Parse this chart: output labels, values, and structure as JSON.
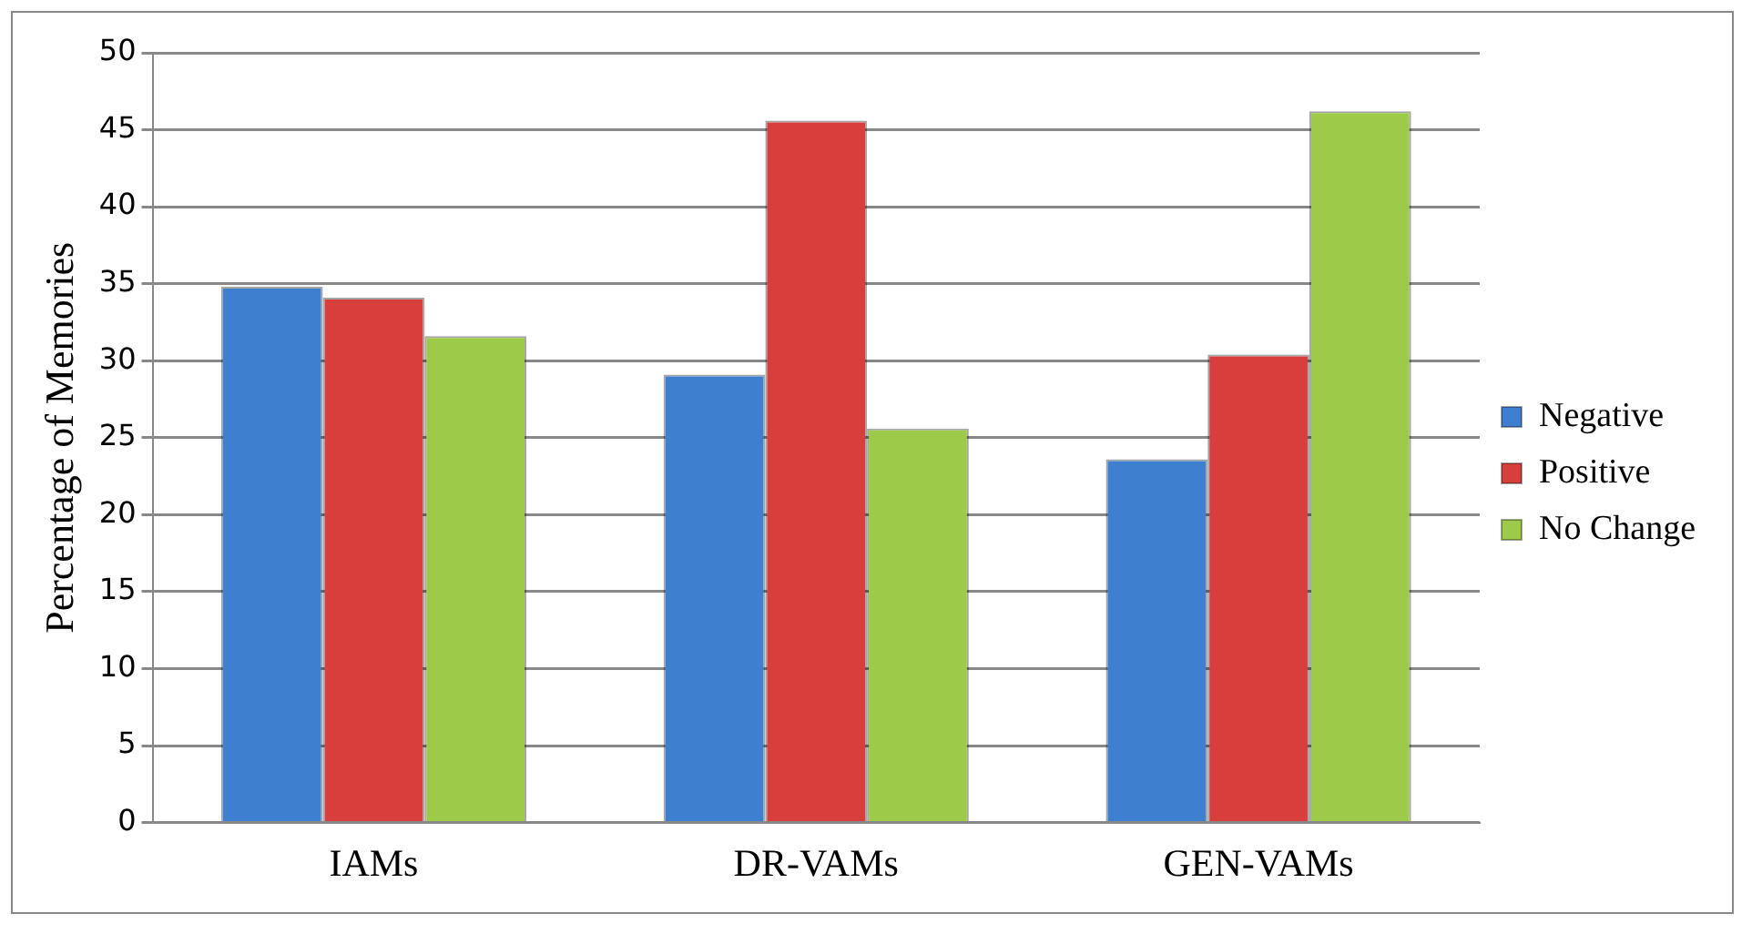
{
  "chart_data": {
    "type": "bar",
    "ylabel": "Percentage of Memories",
    "categories": [
      "IAMs",
      "DR-VAMs",
      "GEN-VAMs"
    ],
    "series": [
      {
        "name": "Negative",
        "color": "#3f7fcf",
        "values": [
          34.8,
          29.1,
          23.6
        ]
      },
      {
        "name": "Positive",
        "color": "#d63f3c",
        "values": [
          34.1,
          45.6,
          30.4
        ]
      },
      {
        "name": "No Change",
        "color": "#9dca48",
        "values": [
          31.6,
          25.6,
          46.2
        ]
      }
    ],
    "ylim": [
      0,
      50
    ],
    "yticks": [
      0,
      5,
      10,
      15,
      20,
      25,
      30,
      35,
      40,
      45,
      50
    ],
    "grid": "y",
    "legend": "right"
  }
}
